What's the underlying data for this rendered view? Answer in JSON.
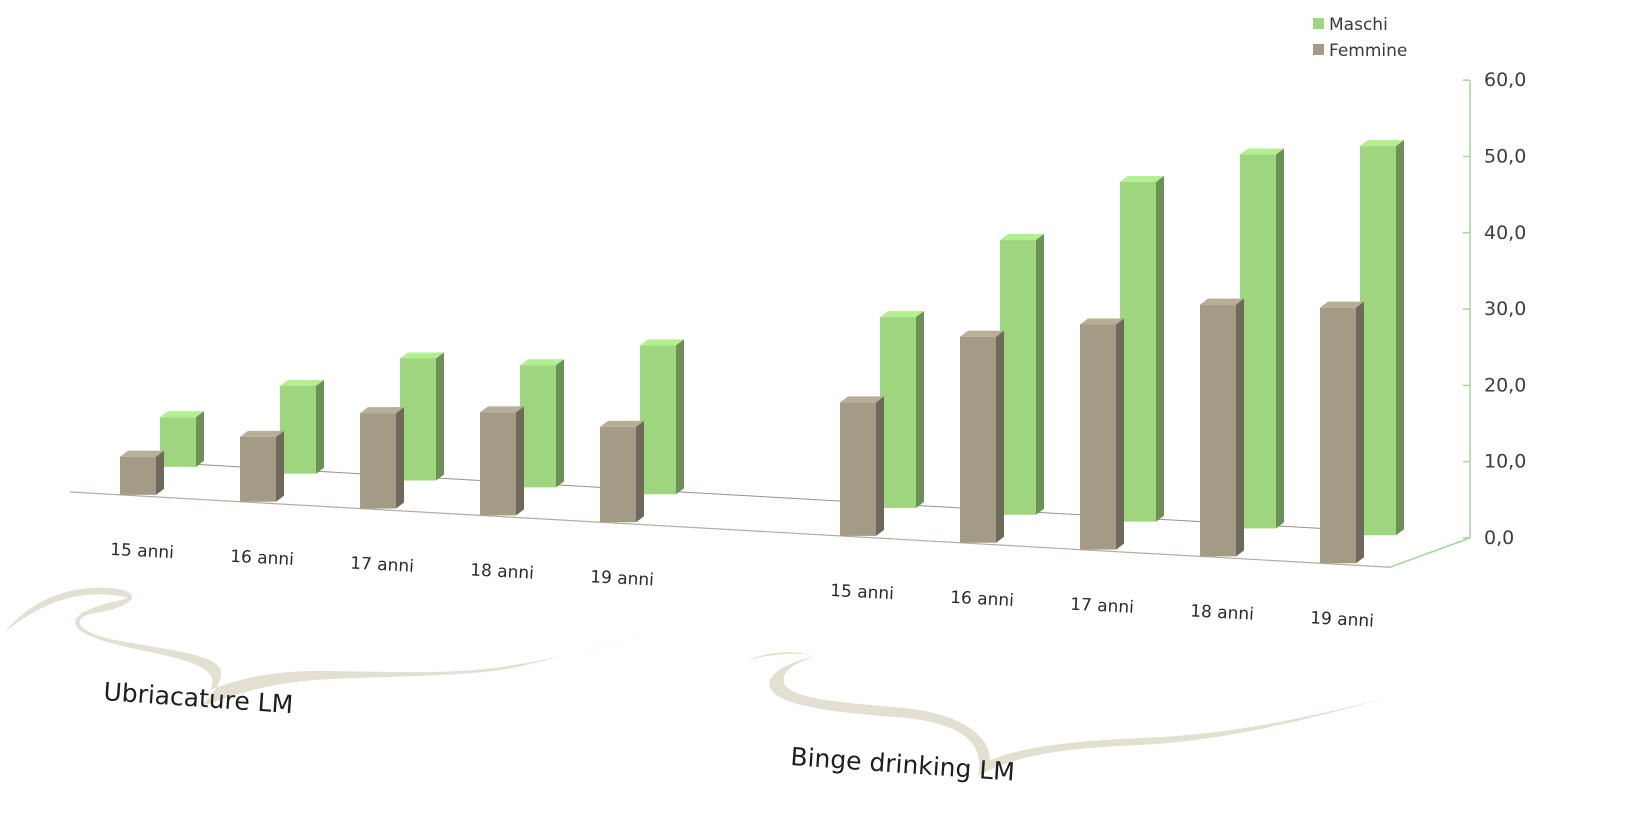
{
  "chart_data": {
    "type": "bar",
    "groups": [
      {
        "label": "Ubriacature LM",
        "categories": [
          "15 anni",
          "16 anni",
          "17 anni",
          "18 anni",
          "19 anni"
        ]
      },
      {
        "label": "Binge drinking LM",
        "categories": [
          "15 anni",
          "16 anni",
          "17 anni",
          "18 anni",
          "19 anni"
        ]
      }
    ],
    "series": [
      {
        "name": "Maschi",
        "color": "#9fd57f",
        "values": [
          6.5,
          11.5,
          16.0,
          16.0,
          19.5,
          25.0,
          36.0,
          44.5,
          49.0,
          51.0
        ]
      },
      {
        "name": "Femmine",
        "color": "#a39b86",
        "values": [
          5.0,
          8.5,
          12.5,
          13.5,
          12.5,
          17.5,
          27.0,
          29.5,
          33.0,
          33.5
        ]
      }
    ],
    "yticks": [
      "60,0",
      "50,0",
      "40,0",
      "30,0",
      "20,0",
      "10,0",
      "0,0"
    ],
    "ylim": [
      0,
      60
    ],
    "legend_position": "top-right",
    "grid": false
  }
}
